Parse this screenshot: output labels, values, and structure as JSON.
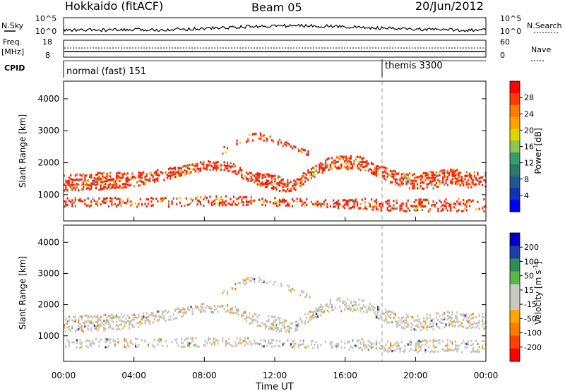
{
  "header": {
    "site": "Hokkaido (fitACF)",
    "beam": "Beam 05",
    "date": "20/Jun/2012"
  },
  "noise_panel": {
    "left_label": "N.Sky",
    "left_ticks": [
      "10^5",
      "10^0"
    ],
    "right_label": "N.Search",
    "right_ticks": [
      "10^5",
      "10^0"
    ]
  },
  "freq_panel": {
    "left_label_line1": "Freq.",
    "left_label_line2": "[MHz]",
    "left_ticks": [
      "18",
      "8"
    ],
    "right_label": "Nave",
    "right_ticks": [
      "60",
      "0"
    ]
  },
  "cpid_panel": {
    "label": "CPID",
    "modes": [
      {
        "name": "normal (fast) 151",
        "start_hour": 0
      },
      {
        "name": "themis 3300",
        "start_hour": 18
      }
    ]
  },
  "time_axis": {
    "label": "Time UT",
    "ticks": [
      "00:00",
      "04:00",
      "08:00",
      "12:00",
      "16:00",
      "20:00",
      "00:00"
    ]
  },
  "chart_data": [
    {
      "type": "heatmap",
      "quantity": "power",
      "ylabel": "Slant Range [km]",
      "yticks": [
        1000,
        2000,
        3000,
        4000
      ],
      "ylim": [
        180,
        4550
      ],
      "xlim": [
        0,
        24
      ],
      "colorbar": {
        "label": "Power [dB]",
        "ticks": [
          "28",
          "24",
          "20",
          "16",
          "12",
          "8",
          "4"
        ],
        "colors": [
          "#ff0000",
          "#ff3a00",
          "#ff7a00",
          "#ffa200",
          "#e0d400",
          "#8cc64e",
          "#3a9a6a",
          "#2a7a6e",
          "#1f5a8c",
          "#1630b4",
          "#0000ff"
        ]
      },
      "bands": [
        {
          "t": [
            0,
            2,
            4,
            6,
            8,
            9.5,
            10.5,
            12,
            13,
            14,
            15,
            16,
            17,
            18,
            19,
            20,
            21,
            22,
            23,
            24
          ],
          "center": [
            1400,
            1450,
            1500,
            1700,
            1950,
            1900,
            1600,
            1400,
            1300,
            1700,
            2000,
            2050,
            2000,
            1750,
            1500,
            1450,
            1500,
            1600,
            1500,
            1500
          ],
          "width": [
            500,
            550,
            450,
            350,
            300,
            300,
            350,
            500,
            350,
            350,
            400,
            450,
            400,
            400,
            450,
            500,
            550,
            500,
            500,
            500
          ],
          "density": 0.55
        },
        {
          "t": [
            0,
            3,
            6,
            9,
            12,
            15,
            17,
            18,
            20,
            22,
            24
          ],
          "center": [
            800,
            800,
            800,
            850,
            800,
            750,
            750,
            700,
            700,
            700,
            700
          ],
          "width": [
            300,
            300,
            300,
            300,
            250,
            250,
            350,
            350,
            400,
            400,
            400
          ],
          "density": 0.35
        },
        {
          "t": [
            9,
            10,
            11,
            12,
            13,
            14
          ],
          "center": [
            2400,
            2700,
            2900,
            2700,
            2500,
            2300
          ],
          "width": [
            200,
            200,
            250,
            200,
            200,
            200
          ],
          "density": 0.35
        }
      ]
    },
    {
      "type": "heatmap",
      "quantity": "velocity",
      "ylabel": "Slant Range [km]",
      "yticks": [
        1000,
        2000,
        3000,
        4000
      ],
      "ylim": [
        180,
        4550
      ],
      "xlim": [
        0,
        24
      ],
      "colorbar": {
        "label": "Velocity [m s^-1]",
        "ticks": [
          "200",
          "100",
          "50",
          "15",
          "-15",
          "-50",
          "-100",
          "-200"
        ],
        "colors": [
          "#0000c8",
          "#1e3caa",
          "#2f8c57",
          "#5ab64a",
          "#c8c8c0",
          "#c8c8c0",
          "#ffa500",
          "#ff7a00",
          "#ff4000",
          "#ff0000"
        ]
      },
      "bands": [
        {
          "t": [
            0,
            2,
            4,
            6,
            8,
            9.5,
            10.5,
            12,
            13,
            14,
            15,
            16,
            17,
            18,
            19,
            20,
            21,
            22,
            23,
            24
          ],
          "center": [
            1400,
            1450,
            1500,
            1700,
            1950,
            1900,
            1600,
            1400,
            1300,
            1700,
            2000,
            2050,
            2000,
            1750,
            1500,
            1450,
            1500,
            1600,
            1500,
            1500
          ],
          "width": [
            500,
            550,
            450,
            350,
            300,
            300,
            350,
            500,
            350,
            350,
            400,
            450,
            400,
            400,
            450,
            500,
            550,
            500,
            500,
            500
          ],
          "density": 0.45
        },
        {
          "t": [
            0,
            3,
            6,
            9,
            12,
            15,
            17,
            18,
            20,
            22,
            24
          ],
          "center": [
            800,
            800,
            800,
            850,
            800,
            750,
            750,
            700,
            700,
            700,
            700
          ],
          "width": [
            300,
            300,
            300,
            300,
            250,
            250,
            350,
            350,
            400,
            400,
            400
          ],
          "density": 0.35
        },
        {
          "t": [
            9,
            10,
            11,
            12,
            13,
            14
          ],
          "center": [
            2400,
            2700,
            2900,
            2700,
            2500,
            2300
          ],
          "width": [
            200,
            200,
            250,
            200,
            200,
            200
          ],
          "density": 0.3
        }
      ]
    }
  ]
}
